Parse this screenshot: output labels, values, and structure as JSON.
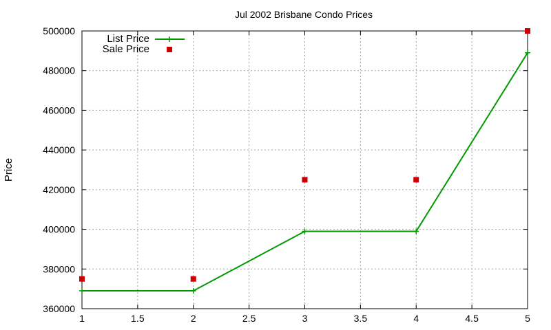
{
  "colors": {
    "list": "#009900",
    "sale": "#cc0000",
    "grid": "#a0a0a0",
    "axis": "#000000"
  },
  "chart_data": {
    "type": "line",
    "title": "Jul 2002 Brisbane Condo Prices",
    "xlabel": "",
    "ylabel": "Price",
    "xlim": [
      1,
      5
    ],
    "ylim": [
      360000,
      500000
    ],
    "x_ticks": [
      "1",
      "1.5",
      "2",
      "2.5",
      "3",
      "3.5",
      "4",
      "4.5",
      "5"
    ],
    "y_ticks": [
      "360000",
      "380000",
      "400000",
      "420000",
      "440000",
      "460000",
      "480000",
      "500000"
    ],
    "grid": true,
    "legend_position": "top-left",
    "series": [
      {
        "name": "List Price",
        "style": "line+cross",
        "x": [
          1,
          2,
          3,
          4,
          5
        ],
        "y": [
          369000,
          369000,
          399000,
          399000,
          489000
        ]
      },
      {
        "name": "Sale Price",
        "style": "square",
        "x": [
          1,
          2,
          3,
          4,
          5
        ],
        "y": [
          375000,
          375000,
          425000,
          425000,
          500000
        ]
      }
    ]
  }
}
